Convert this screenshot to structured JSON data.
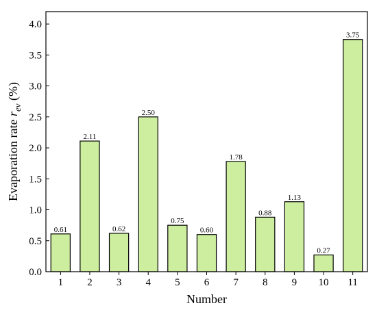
{
  "chart_data": {
    "type": "bar",
    "xlabel": "Number",
    "ylabel": {
      "main": "Evaporation rate ",
      "symbol": "r",
      "subscript": "ev",
      "unit": " (%)"
    },
    "categories": [
      "1",
      "2",
      "3",
      "4",
      "5",
      "6",
      "7",
      "8",
      "9",
      "10",
      "11"
    ],
    "values": [
      0.61,
      2.11,
      0.62,
      2.5,
      0.75,
      0.6,
      1.78,
      0.88,
      1.13,
      0.27,
      3.75
    ],
    "value_labels": [
      "0.61",
      "2.11",
      "0.62",
      "2.50",
      "0.75",
      "0.60",
      "1.78",
      "0.88",
      "1.13",
      "0.27",
      "3.75"
    ],
    "ylim": [
      0,
      4.2
    ],
    "yticks": [
      "0.0",
      "0.5",
      "1.0",
      "1.5",
      "2.0",
      "2.5",
      "3.0",
      "3.5",
      "4.0"
    ],
    "grid": false,
    "colors": {
      "bar_fill": "#cdee9e",
      "bar_stroke": "#000000",
      "axis": "#000000"
    }
  }
}
